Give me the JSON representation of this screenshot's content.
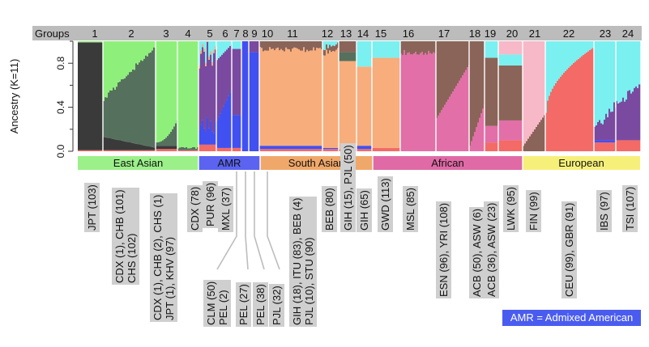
{
  "chart_data": {
    "type": "bar",
    "subtype": "stacked-admixture",
    "ylabel": "Ancestry (K=11)",
    "yticks": [
      "0.0",
      "0.4",
      "0.8"
    ],
    "ylim": [
      0,
      1
    ],
    "groups_label": "Groups",
    "groups": [
      "1",
      "2",
      "3",
      "4",
      "5",
      "6",
      "7",
      "8",
      "9",
      "10",
      "11",
      "12",
      "13",
      "14",
      "15",
      "16",
      "17",
      "18",
      "19",
      "20",
      "21",
      "22",
      "23",
      "24"
    ],
    "regions": [
      {
        "name": "East Asian",
        "color": "#9cf08a"
      },
      {
        "name": "AMR",
        "color": "#5b63f0"
      },
      {
        "name": "South Asian",
        "color": "#f0a86a"
      },
      {
        "name": "African",
        "color": "#df6aa6"
      },
      {
        "name": "European",
        "color": "#f6f07a"
      }
    ],
    "population_labels": [
      [
        "JPT (103)"
      ],
      [
        "CDX (1), CHB (101)",
        "CHS (102)"
      ],
      [
        "CDX (1), CHB (2), CHS (1)",
        "JPT (1), KHV (97)"
      ],
      [
        "CDX (78)"
      ],
      [
        "PUR (96)"
      ],
      [
        "MXL (37)"
      ],
      [
        "CLM (50)",
        "PEL (2)"
      ],
      [
        "PEL (27)"
      ],
      [
        "PEL (38)"
      ],
      [
        "PJL (32)"
      ],
      [
        "GIH (18), ITU (83), BEB (4)",
        "PJL (10), STU (90)"
      ],
      [
        "BEB (80)"
      ],
      [
        "GIH (15), PJL (50)"
      ],
      [
        "GIH (65)"
      ],
      [
        "GWD (113)"
      ],
      [
        "MSL (85)"
      ],
      [
        "ESN (96), YRI (108)"
      ],
      [
        "ACB (50), ASW (6)"
      ],
      [
        "ACB (36), ASW (23)"
      ],
      [
        "LWK (95)"
      ],
      [
        "FIN (99)"
      ],
      [
        "CEU (99), GBR (91)"
      ],
      [
        "IBS (97)"
      ],
      [
        "TSI (107)"
      ]
    ],
    "ancestry_colors": {
      "east_asian_dark": "#3a3a3a",
      "east_asian_mid": "#56705e",
      "east_asian_light": "#8ef07a",
      "amr_purple": "#7a4aa0",
      "amr_blue": "#4150f0",
      "south_asian": "#f7ad7c",
      "african_pink": "#e26fa8",
      "african_brown": "#8a6458",
      "african_light": "#f7b8c8",
      "european_red": "#f46a66",
      "european_cyan": "#7af0f0",
      "european_purple": "#6e4aa0"
    },
    "note": "AMR = Admixed American"
  }
}
